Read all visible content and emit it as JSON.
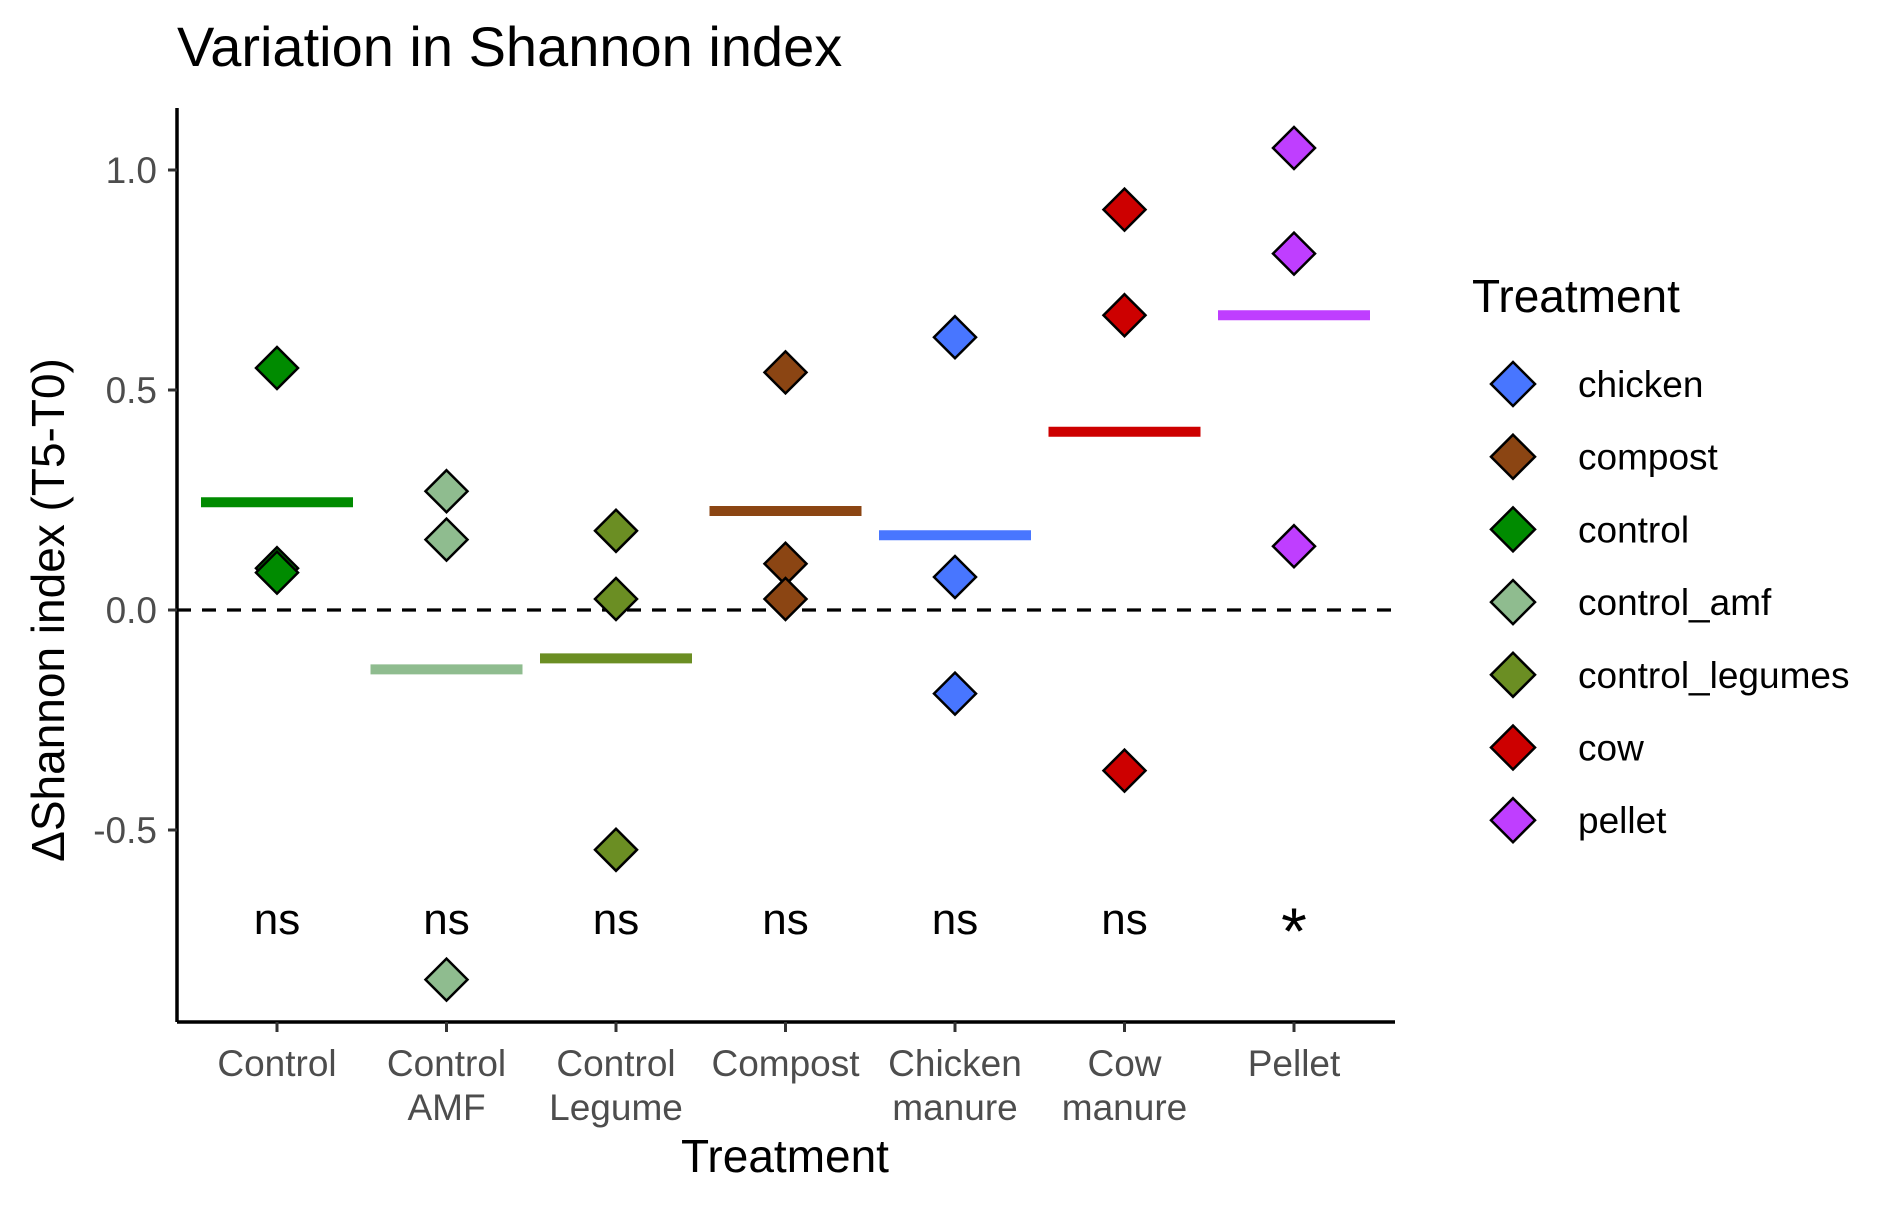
{
  "chart_data": {
    "type": "scatter",
    "title": "Variation in Shannon index",
    "xlabel": "Treatment",
    "ylabel": "ΔShannon index (T5-T0)",
    "ylim": [
      -0.94,
      1.14
    ],
    "yticks": [
      {
        "value": 1.0,
        "label": "1.0"
      },
      {
        "value": 0.5,
        "label": "0.5"
      },
      {
        "value": 0.0,
        "label": "0.0"
      },
      {
        "value": -0.5,
        "label": "-0.5"
      }
    ],
    "reference_line": {
      "value": 0.0,
      "style": "dashed"
    },
    "grid": false,
    "legend_position": "right",
    "legend_title": "Treatment",
    "categories": [
      {
        "key": "control",
        "label_lines": [
          "Control"
        ],
        "color": "#008B00",
        "mean": 0.245,
        "points": [
          0.55,
          0.095,
          0.085
        ],
        "annotation": "ns"
      },
      {
        "key": "control_amf",
        "label_lines": [
          "Control",
          "AMF"
        ],
        "color": "#8FBC8F",
        "mean": -0.135,
        "points": [
          0.27,
          0.16,
          -0.84
        ],
        "annotation": "ns"
      },
      {
        "key": "control_legumes",
        "label_lines": [
          "Control",
          "Legume"
        ],
        "color": "#6B8E23",
        "mean": -0.11,
        "points": [
          0.18,
          0.025,
          -0.545
        ],
        "annotation": "ns"
      },
      {
        "key": "compost",
        "label_lines": [
          "Compost"
        ],
        "color": "#8B4513",
        "mean": 0.225,
        "points": [
          0.54,
          0.105,
          0.025
        ],
        "annotation": "ns"
      },
      {
        "key": "chicken",
        "label_lines": [
          "Chicken",
          "manure"
        ],
        "color": "#4876FF",
        "mean": 0.17,
        "points": [
          0.62,
          0.075,
          -0.19
        ],
        "annotation": "ns"
      },
      {
        "key": "cow",
        "label_lines": [
          "Cow",
          "manure"
        ],
        "color": "#CD0000",
        "mean": 0.405,
        "points": [
          0.91,
          0.67,
          -0.365
        ],
        "annotation": "ns"
      },
      {
        "key": "pellet",
        "label_lines": [
          "Pellet"
        ],
        "color": "#BF3EFF",
        "mean": 0.67,
        "points": [
          1.05,
          0.81,
          0.145
        ],
        "annotation": "*"
      }
    ],
    "annotation_y": -0.7,
    "legend_entries": [
      {
        "label": "chicken",
        "color": "#4876FF"
      },
      {
        "label": "compost",
        "color": "#8B4513"
      },
      {
        "label": "control",
        "color": "#008B00"
      },
      {
        "label": "control_amf",
        "color": "#8FBC8F"
      },
      {
        "label": "control_legumes",
        "color": "#6B8E23"
      },
      {
        "label": "cow",
        "color": "#CD0000"
      },
      {
        "label": "pellet",
        "color": "#BF3EFF"
      }
    ]
  }
}
